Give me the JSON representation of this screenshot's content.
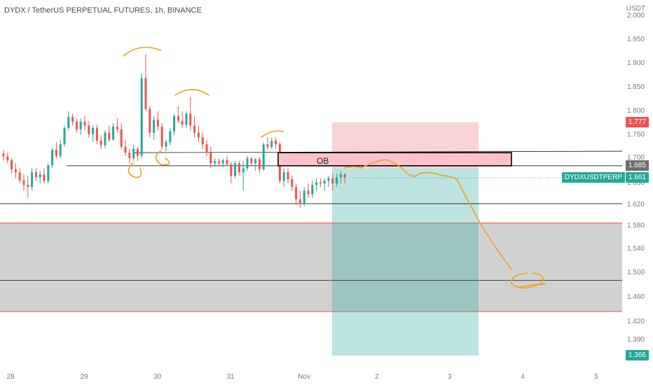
{
  "header": {
    "title": "DYDX / TetherUS PERPETUAL FUTURES, 1h, BINANCE",
    "unit": "USDT"
  },
  "colors": {
    "up": "#26a69a",
    "down": "#ef5350",
    "drawing": "#f0a020",
    "zone_fill": "#cccccc",
    "zone_border": "#ef5350",
    "ob_fill": "#ffc0cb",
    "stop_fill": "#f7c6c9",
    "target_fill": "#a7ddd5",
    "line": "#1a1a1a"
  },
  "chart_data": {
    "type": "candlestick",
    "symbol": "DYDXUSDTPERP",
    "ylim": [
      1.35,
      2.0
    ],
    "y_ticks": [
      "2.000",
      "1.950",
      "1.900",
      "1.850",
      "1.800",
      "1.750",
      "1.700",
      "1.650",
      "1.620",
      "1.580",
      "1.540",
      "1.500",
      "1.460",
      "1.420",
      "1.390"
    ],
    "x_ticks": [
      "28",
      "29",
      "30",
      "31",
      "Nov",
      "2",
      "3",
      "4",
      "5"
    ],
    "candles": [
      [
        1.71,
        1.718,
        1.695,
        1.704
      ],
      [
        1.704,
        1.712,
        1.69,
        1.696
      ],
      [
        1.696,
        1.7,
        1.67,
        1.678
      ],
      [
        1.678,
        1.69,
        1.66,
        1.672
      ],
      [
        1.672,
        1.68,
        1.65,
        1.656
      ],
      [
        1.656,
        1.668,
        1.64,
        1.648
      ],
      [
        1.648,
        1.665,
        1.63,
        1.645
      ],
      [
        1.645,
        1.68,
        1.64,
        1.672
      ],
      [
        1.672,
        1.68,
        1.655,
        1.662
      ],
      [
        1.662,
        1.675,
        1.65,
        1.668
      ],
      [
        1.668,
        1.68,
        1.65,
        1.655
      ],
      [
        1.655,
        1.69,
        1.65,
        1.686
      ],
      [
        1.686,
        1.722,
        1.68,
        1.718
      ],
      [
        1.718,
        1.735,
        1.7,
        1.705
      ],
      [
        1.705,
        1.74,
        1.7,
        1.73
      ],
      [
        1.73,
        1.77,
        1.725,
        1.765
      ],
      [
        1.765,
        1.8,
        1.76,
        1.788
      ],
      [
        1.788,
        1.795,
        1.77,
        1.778
      ],
      [
        1.778,
        1.785,
        1.755,
        1.762
      ],
      [
        1.762,
        1.785,
        1.75,
        1.778
      ],
      [
        1.778,
        1.79,
        1.76,
        1.77
      ],
      [
        1.77,
        1.78,
        1.745,
        1.752
      ],
      [
        1.752,
        1.77,
        1.735,
        1.765
      ],
      [
        1.765,
        1.772,
        1.73,
        1.738
      ],
      [
        1.738,
        1.75,
        1.72,
        1.728
      ],
      [
        1.728,
        1.76,
        1.722,
        1.755
      ],
      [
        1.755,
        1.77,
        1.735,
        1.74
      ],
      [
        1.74,
        1.775,
        1.738,
        1.768
      ],
      [
        1.768,
        1.785,
        1.755,
        1.762
      ],
      [
        1.762,
        1.775,
        1.72,
        1.725
      ],
      [
        1.725,
        1.74,
        1.705,
        1.712
      ],
      [
        1.712,
        1.72,
        1.69,
        1.7
      ],
      [
        1.7,
        1.73,
        1.695,
        1.72
      ],
      [
        1.72,
        1.725,
        1.695,
        1.705
      ],
      [
        1.705,
        1.88,
        1.7,
        1.87
      ],
      [
        1.87,
        1.92,
        1.8,
        1.805
      ],
      [
        1.805,
        1.81,
        1.745,
        1.755
      ],
      [
        1.755,
        1.79,
        1.74,
        1.782
      ],
      [
        1.782,
        1.8,
        1.76,
        1.768
      ],
      [
        1.768,
        1.775,
        1.72,
        1.725
      ],
      [
        1.725,
        1.74,
        1.715,
        1.735
      ],
      [
        1.735,
        1.765,
        1.728,
        1.758
      ],
      [
        1.758,
        1.795,
        1.75,
        1.79
      ],
      [
        1.79,
        1.81,
        1.775,
        1.78
      ],
      [
        1.78,
        1.8,
        1.765,
        1.772
      ],
      [
        1.772,
        1.8,
        1.765,
        1.795
      ],
      [
        1.795,
        1.83,
        1.76,
        1.77
      ],
      [
        1.77,
        1.79,
        1.745,
        1.755
      ],
      [
        1.755,
        1.77,
        1.735,
        1.745
      ],
      [
        1.745,
        1.755,
        1.72,
        1.73
      ],
      [
        1.73,
        1.74,
        1.705,
        1.712
      ],
      [
        1.712,
        1.725,
        1.68,
        1.69
      ],
      [
        1.69,
        1.7,
        1.683,
        1.694
      ],
      [
        1.694,
        1.7,
        1.685,
        1.69
      ],
      [
        1.69,
        1.7,
        1.682,
        1.696
      ],
      [
        1.696,
        1.705,
        1.685,
        1.688
      ],
      [
        1.688,
        1.692,
        1.65,
        1.665
      ],
      [
        1.665,
        1.695,
        1.66,
        1.69
      ],
      [
        1.69,
        1.695,
        1.665,
        1.672
      ],
      [
        1.672,
        1.695,
        1.64,
        1.68
      ],
      [
        1.68,
        1.705,
        1.675,
        1.7
      ],
      [
        1.7,
        1.702,
        1.685,
        1.69
      ],
      [
        1.69,
        1.7,
        1.675,
        1.698
      ],
      [
        1.698,
        1.702,
        1.672,
        1.678
      ],
      [
        1.678,
        1.735,
        1.675,
        1.73
      ],
      [
        1.73,
        1.745,
        1.718,
        1.724
      ],
      [
        1.724,
        1.745,
        1.72,
        1.738
      ],
      [
        1.738,
        1.745,
        1.72,
        1.73
      ],
      [
        1.73,
        1.735,
        1.65,
        1.655
      ],
      [
        1.655,
        1.68,
        1.645,
        1.672
      ],
      [
        1.672,
        1.68,
        1.65,
        1.658
      ],
      [
        1.658,
        1.665,
        1.64,
        1.645
      ],
      [
        1.645,
        1.65,
        1.62,
        1.628
      ],
      [
        1.628,
        1.64,
        1.615,
        1.622
      ],
      [
        1.622,
        1.645,
        1.618,
        1.64
      ],
      [
        1.64,
        1.65,
        1.63,
        1.635
      ],
      [
        1.635,
        1.655,
        1.63,
        1.648
      ],
      [
        1.648,
        1.66,
        1.64,
        1.652
      ],
      [
        1.652,
        1.66,
        1.645,
        1.65
      ],
      [
        1.65,
        1.66,
        1.64,
        1.655
      ],
      [
        1.655,
        1.665,
        1.645,
        1.66
      ],
      [
        1.66,
        1.67,
        1.64,
        1.65
      ],
      [
        1.65,
        1.67,
        1.645,
        1.662
      ],
      [
        1.662,
        1.675,
        1.65,
        1.668
      ],
      [
        1.668,
        1.67,
        1.65,
        1.661
      ]
    ],
    "horizontal_lines": [
      1.712,
      1.685,
      1.622,
      1.488
    ],
    "demand_zone": [
      1.437,
      1.586
    ],
    "order_block": {
      "label": "OB",
      "range": [
        1.685,
        1.712
      ]
    },
    "position": {
      "stop_range": [
        1.68,
        1.777
      ],
      "target_range": [
        1.366,
        1.68
      ]
    },
    "price_labels": [
      {
        "text": "1.777",
        "color": "#ef5350"
      },
      {
        "text": "1.685",
        "color": "#6d6d6d"
      },
      {
        "text": "DYDXUSDTPERP",
        "color": "#26a69a"
      },
      {
        "text": "1.661",
        "color": "#26a69a"
      },
      {
        "text": "1.366",
        "color": "#26a69a"
      }
    ]
  }
}
